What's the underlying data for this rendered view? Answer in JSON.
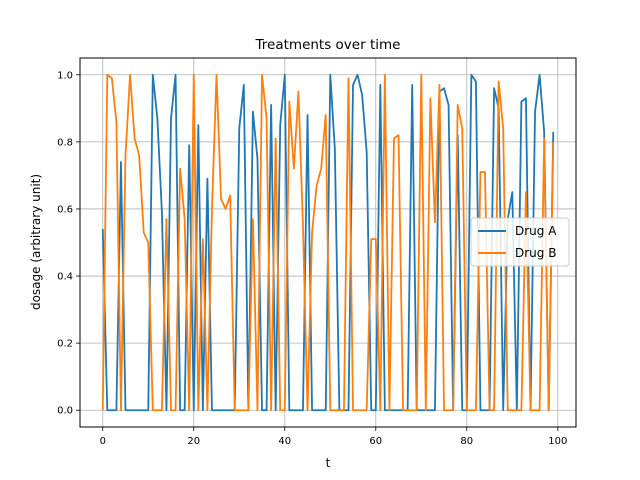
{
  "chart_data": {
    "type": "line",
    "title": "Treatments over time",
    "xlabel": "t",
    "ylabel": "dosage (arbitrary unit)",
    "xlim": [
      -5,
      104
    ],
    "ylim": [
      -0.05,
      1.05
    ],
    "xticks": [
      0,
      20,
      40,
      60,
      80,
      100
    ],
    "yticks": [
      0.0,
      0.2,
      0.4,
      0.6,
      0.8,
      1.0
    ],
    "grid": true,
    "legend_position": "center-right",
    "x": [
      0,
      1,
      2,
      3,
      4,
      5,
      6,
      7,
      8,
      9,
      10,
      11,
      12,
      13,
      14,
      15,
      16,
      17,
      18,
      19,
      20,
      21,
      22,
      23,
      24,
      25,
      26,
      27,
      28,
      29,
      30,
      31,
      32,
      33,
      34,
      35,
      36,
      37,
      38,
      39,
      40,
      41,
      42,
      43,
      44,
      45,
      46,
      47,
      48,
      49,
      50,
      51,
      52,
      53,
      54,
      55,
      56,
      57,
      58,
      59,
      60,
      61,
      62,
      63,
      64,
      65,
      66,
      67,
      68,
      69,
      70,
      71,
      72,
      73,
      74,
      75,
      76,
      77,
      78,
      79,
      80,
      81,
      82,
      83,
      84,
      85,
      86,
      87,
      88,
      89,
      90,
      91,
      92,
      93,
      94,
      95,
      96,
      97,
      98,
      99
    ],
    "series": [
      {
        "name": "Drug A",
        "color": "#1f77b4",
        "values": [
          0.54,
          0,
          0,
          0,
          0.74,
          0,
          0,
          0,
          0,
          0,
          0,
          1.0,
          0.87,
          0.59,
          0,
          0.87,
          1.0,
          0,
          0,
          0.79,
          0,
          0.85,
          0,
          0.69,
          0,
          0,
          0,
          0,
          0,
          0,
          0.84,
          0.97,
          0,
          0.89,
          0.75,
          0,
          0,
          0.91,
          0,
          0.85,
          1.0,
          0,
          0,
          0,
          0,
          0.88,
          0,
          0,
          0,
          0,
          1.0,
          0.78,
          0,
          0,
          0,
          0.97,
          1.0,
          0.94,
          0.77,
          0,
          0,
          0.97,
          0,
          0,
          0,
          0,
          0,
          0,
          0.97,
          0,
          0,
          0,
          0,
          0,
          0.95,
          0.96,
          0.91,
          0,
          0.82,
          0,
          0,
          1.0,
          0.98,
          0,
          0,
          0,
          0.96,
          0.9,
          0,
          0.57,
          0.65,
          0,
          0.92,
          0.93,
          0,
          0.89,
          1.0,
          0.83,
          0,
          0.83
        ]
      },
      {
        "name": "Drug B",
        "color": "#ff7f0e",
        "values": [
          0,
          1.0,
          0.99,
          0.86,
          0,
          0.76,
          1.0,
          0.81,
          0.76,
          0.53,
          0.5,
          0,
          0,
          0,
          0.57,
          0,
          0,
          0.72,
          0.57,
          0,
          1.0,
          0,
          0.51,
          0,
          0.6,
          1.0,
          0.63,
          0.6,
          0.64,
          0,
          0,
          0,
          0,
          0.57,
          0,
          1.0,
          0.87,
          0,
          0.81,
          0,
          0,
          0.92,
          0.72,
          0.95,
          0.55,
          0,
          0.53,
          0.67,
          0.72,
          0.88,
          0,
          0,
          0,
          0,
          0.99,
          0,
          0,
          0,
          0,
          0.51,
          0.51,
          0,
          1.0,
          0,
          0.81,
          0.82,
          0,
          0,
          0,
          0,
          1.0,
          0,
          0.93,
          0.56,
          0.97,
          0,
          0,
          0,
          0.91,
          0.84,
          0,
          0,
          0,
          0.71,
          0.71,
          0,
          0,
          0.98,
          0.84,
          0,
          0,
          0,
          0,
          0.65,
          0,
          0,
          0,
          0.81,
          0,
          0.8
        ]
      }
    ]
  }
}
